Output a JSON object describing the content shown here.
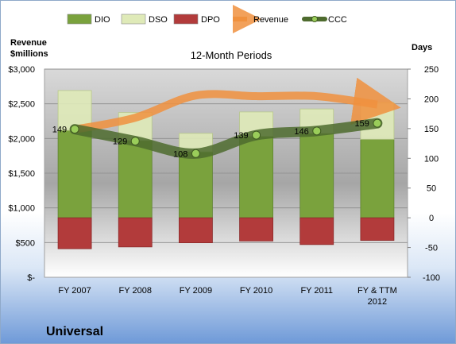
{
  "chart_data": {
    "type": "bar",
    "title": "12-Month Periods",
    "company": "Universal",
    "left_axis_title": [
      "Revenue",
      "$millions"
    ],
    "right_axis_title": "Days",
    "categories": [
      [
        "FY 2007"
      ],
      [
        "FY 2008"
      ],
      [
        "FY 2009"
      ],
      [
        "FY 2010"
      ],
      [
        "FY 2011"
      ],
      [
        "FY & TTM",
        "2012"
      ]
    ],
    "left_ticks": [
      "$-",
      "$500",
      "$1,000",
      "$1,500",
      "$2,000",
      "$2,500",
      "$3,000"
    ],
    "right_ticks": [
      "-100",
      "-50",
      "0",
      "50",
      "100",
      "150",
      "200",
      "250"
    ],
    "ylim_left": [
      0,
      3000
    ],
    "ylim_right": [
      -100,
      250
    ],
    "legend": [
      "DIO",
      "DSO",
      "DPO",
      "Revenue",
      "CCC"
    ],
    "legend_position": "top",
    "series": [
      {
        "name": "DIO",
        "axis": "right",
        "values": [
          147,
          130,
          111,
          137,
          142,
          132
        ]
      },
      {
        "name": "DSO",
        "axis": "right",
        "values": [
          67,
          47,
          31,
          41,
          41,
          62
        ]
      },
      {
        "name": "DPO",
        "axis": "right",
        "values": [
          -52,
          -49,
          -42,
          -39,
          -45,
          -38
        ]
      },
      {
        "name": "Revenue",
        "axis": "left",
        "values": [
          2130,
          2300,
          2620,
          2610,
          2610,
          2490
        ]
      },
      {
        "name": "CCC",
        "axis": "right",
        "values": [
          149,
          129,
          108,
          139,
          146,
          159
        ]
      }
    ],
    "ccc_labels": [
      "149",
      "129",
      "108",
      "139",
      "146",
      "159"
    ],
    "colors": {
      "DIO": "#7aa23d",
      "DSO": "#dfeab8",
      "DPO": "#b23b3b",
      "Revenue": "#f0913e",
      "CCC": "#4e6b2e"
    }
  }
}
